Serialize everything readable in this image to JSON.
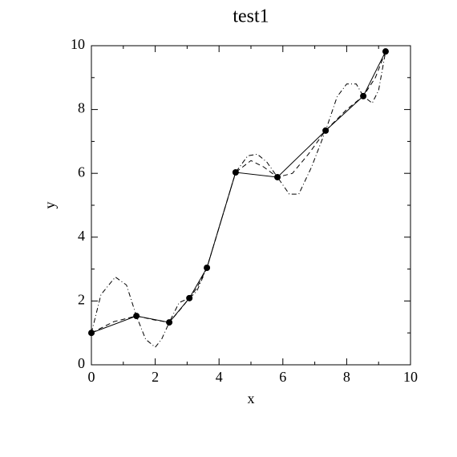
{
  "chart_data": {
    "type": "line",
    "title": "test1",
    "x_label": "x",
    "y_label": "y",
    "xlim": [
      0,
      10
    ],
    "ylim": [
      0,
      10
    ],
    "xticks": [
      0,
      2,
      4,
      6,
      8,
      10
    ],
    "yticks": [
      0,
      2,
      4,
      6,
      8,
      10
    ],
    "xminorticks": [
      1,
      3,
      5,
      7,
      9
    ],
    "yminorticks": [
      1,
      3,
      5,
      7,
      9
    ],
    "series": [
      {
        "color": "#000000",
        "line_style": "solid",
        "marker": "circle",
        "x": [
          0,
          1.41,
          2.44,
          3.07,
          3.62,
          4.52,
          5.83,
          7.34,
          8.52,
          9.22
        ],
        "values": [
          1.0,
          1.53,
          1.33,
          2.09,
          3.04,
          6.03,
          5.88,
          7.34,
          8.42,
          9.82
        ]
      },
      {
        "color": "#000000",
        "line_style": "dashed",
        "x": [
          0,
          0.7,
          1.41,
          2.0,
          2.44,
          2.8,
          3.07,
          3.3,
          3.62,
          4.0,
          4.52,
          5.0,
          5.4,
          5.83,
          6.3,
          6.8,
          7.34,
          8.0,
          8.52,
          8.9,
          9.22
        ],
        "values": [
          1.0,
          1.35,
          1.53,
          1.4,
          1.33,
          1.75,
          2.09,
          2.4,
          3.04,
          4.3,
          6.03,
          6.4,
          6.2,
          5.88,
          6.0,
          6.6,
          7.34,
          8.0,
          8.42,
          9.0,
          9.82
        ]
      },
      {
        "color": "#000000",
        "line_style": "dashdot",
        "x": [
          0,
          0.3,
          0.75,
          1.1,
          1.41,
          1.7,
          2.0,
          2.2,
          2.44,
          2.75,
          3.07,
          3.3,
          3.62,
          4.0,
          4.52,
          4.9,
          5.2,
          5.5,
          5.83,
          6.2,
          6.5,
          6.9,
          7.34,
          7.7,
          8.0,
          8.3,
          8.52,
          8.8,
          9.0,
          9.22
        ],
        "values": [
          1.0,
          2.2,
          2.75,
          2.5,
          1.53,
          0.8,
          0.55,
          0.8,
          1.33,
          1.95,
          2.09,
          2.3,
          3.04,
          4.3,
          6.03,
          6.55,
          6.6,
          6.35,
          5.88,
          5.35,
          5.35,
          6.2,
          7.34,
          8.4,
          8.8,
          8.8,
          8.42,
          8.2,
          8.6,
          9.82
        ]
      }
    ]
  }
}
